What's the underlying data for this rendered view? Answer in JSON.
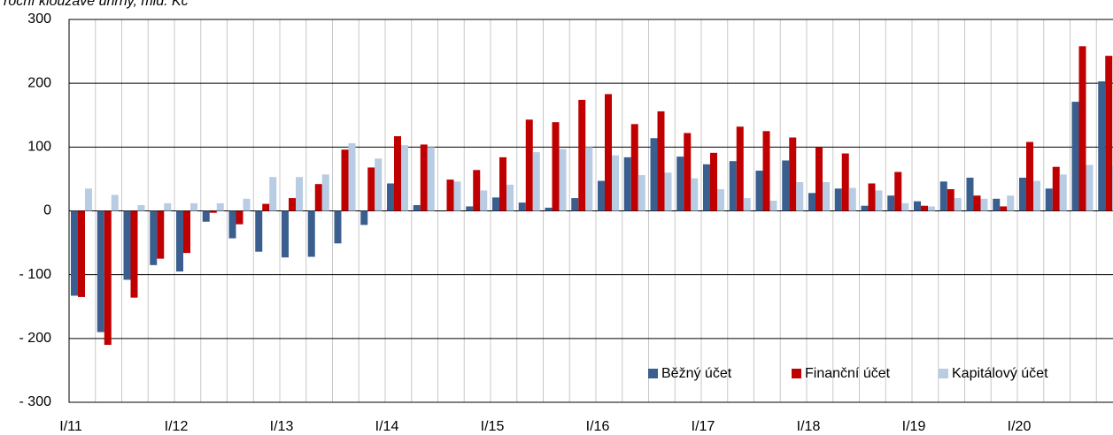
{
  "chart_data": {
    "type": "bar",
    "title": "roční klouzavé úhrny, mld. Kč",
    "categories": [
      "I/11",
      null,
      null,
      null,
      "I/12",
      null,
      null,
      null,
      "I/13",
      null,
      null,
      null,
      "I/14",
      null,
      null,
      null,
      "I/15",
      null,
      null,
      null,
      "I/16",
      null,
      null,
      null,
      "I/17",
      null,
      null,
      null,
      "I/18",
      null,
      null,
      null,
      "I/19",
      null,
      null,
      null,
      "I/20",
      null,
      null,
      null
    ],
    "series": [
      {
        "name": "Běžný účet",
        "color": "#3a5f8f",
        "values": [
          -133,
          -190,
          -108,
          -85,
          -95,
          -17,
          -43,
          -64,
          -73,
          -72,
          -51,
          -22,
          43,
          9,
          0,
          7,
          21,
          13,
          5,
          20,
          47,
          84,
          114,
          85,
          73,
          78,
          63,
          79,
          28,
          35,
          8,
          24,
          15,
          46,
          52,
          19,
          52,
          35,
          171,
          203
        ]
      },
      {
        "name": "Finanční účet",
        "color": "#c00000",
        "values": [
          -135,
          -210,
          -136,
          -75,
          -66,
          -3,
          -21,
          11,
          20,
          42,
          96,
          68,
          117,
          104,
          49,
          64,
          84,
          143,
          139,
          174,
          183,
          136,
          156,
          122,
          91,
          132,
          125,
          115,
          100,
          90,
          43,
          61,
          8,
          34,
          24,
          7,
          108,
          69,
          258,
          243
        ]
      },
      {
        "name": "Kapitálový účet",
        "color": "#b8cce4",
        "values": [
          35,
          25,
          9,
          12,
          12,
          12,
          19,
          53,
          53,
          57,
          106,
          82,
          103,
          100,
          46,
          32,
          41,
          92,
          97,
          100,
          87,
          56,
          60,
          51,
          34,
          20,
          16,
          45,
          45,
          36,
          32,
          12,
          7,
          20,
          19,
          24,
          47,
          57,
          72,
          70
        ]
      }
    ],
    "ylim": [
      -300,
      300
    ],
    "yticks": [
      {
        "value": -300,
        "label": "- 300"
      },
      {
        "value": -200,
        "label": "- 200"
      },
      {
        "value": -100,
        "label": "- 100"
      },
      0,
      100,
      200,
      300
    ],
    "grid": true,
    "legend": "lower right"
  }
}
